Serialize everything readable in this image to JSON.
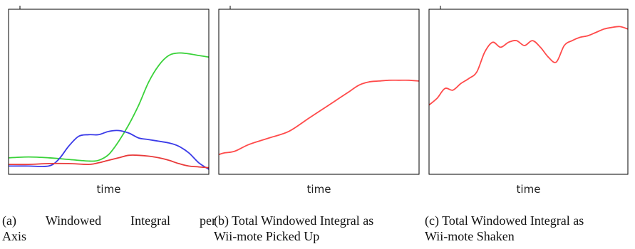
{
  "chart_data": [
    {
      "type": "line",
      "xlabel": "time",
      "caption_label": "(a)",
      "caption_text": "Windowed Integral per Axis",
      "caption_line1": [
        "(a)",
        "Windowed",
        "Integral",
        "per"
      ],
      "caption_line2": "Axis",
      "grid": false,
      "xlim": [
        0,
        100
      ],
      "ylim": [
        0,
        100
      ],
      "series": [
        {
          "color": "#3ad23a",
          "x": [
            0,
            10,
            20,
            30,
            40,
            45,
            50,
            55,
            60,
            65,
            70,
            75,
            80,
            85,
            90,
            95,
            100
          ],
          "y": [
            10,
            10.5,
            10,
            9,
            8,
            8.5,
            12,
            20,
            30,
            42,
            56,
            66,
            72,
            73.5,
            73,
            72,
            71
          ]
        },
        {
          "color": "#3a3ae8",
          "x": [
            0,
            10,
            20,
            25,
            30,
            35,
            40,
            45,
            50,
            55,
            60,
            65,
            70,
            80,
            85,
            90,
            95,
            100
          ],
          "y": [
            5,
            5,
            5,
            9,
            17,
            23,
            24,
            24,
            26,
            26.5,
            25,
            22,
            21,
            19,
            17,
            13,
            7,
            3
          ]
        },
        {
          "color": "#e83a3a",
          "x": [
            0,
            10,
            20,
            30,
            40,
            45,
            50,
            55,
            60,
            65,
            70,
            75,
            80,
            85,
            90,
            95,
            100
          ],
          "y": [
            6,
            6,
            6.5,
            6.5,
            6,
            7,
            8.5,
            10,
            11.5,
            11.5,
            11,
            10,
            8.5,
            6.5,
            5,
            4.5,
            4
          ]
        }
      ]
    },
    {
      "type": "line",
      "xlabel": "time",
      "caption_label": "(b)",
      "caption_line1": "(b) Total Windowed Integral as",
      "caption_line2": "Wii-mote Picked Up",
      "grid": false,
      "xlim": [
        0,
        100
      ],
      "ylim": [
        0,
        100
      ],
      "series": [
        {
          "color": "#ff4a4a",
          "x": [
            0,
            3,
            8,
            15,
            25,
            35,
            45,
            55,
            60,
            65,
            70,
            75,
            80,
            85,
            90,
            95,
            100
          ],
          "y": [
            12,
            13,
            14,
            18,
            22,
            26,
            34,
            42,
            46,
            50,
            54,
            56,
            56.5,
            57,
            57,
            57,
            56.5
          ]
        }
      ]
    },
    {
      "type": "line",
      "xlabel": "time",
      "caption_label": "(c)",
      "caption_line1": "(c) Total Windowed Integral as",
      "caption_line2": "Wii-mote Shaken",
      "grid": false,
      "xlim": [
        0,
        100
      ],
      "ylim": [
        0,
        100
      ],
      "series": [
        {
          "color": "#ff4a4a",
          "x": [
            0,
            4,
            8,
            12,
            16,
            20,
            24,
            28,
            32,
            36,
            40,
            44,
            48,
            52,
            56,
            60,
            64,
            68,
            72,
            76,
            80,
            84,
            88,
            92,
            96,
            100
          ],
          "y": [
            42,
            46,
            52,
            51,
            55,
            58,
            62,
            74,
            80,
            77,
            80,
            81,
            78,
            81,
            77,
            71,
            68,
            78,
            81,
            83,
            84,
            86,
            88,
            89,
            89.5,
            88
          ]
        }
      ]
    }
  ]
}
